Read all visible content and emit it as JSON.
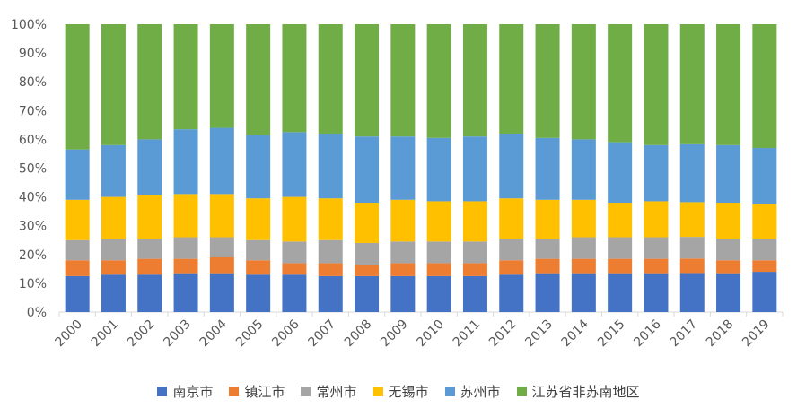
{
  "chart_data": {
    "type": "bar",
    "stacked": "percent",
    "categories": [
      "2000",
      "2001",
      "2002",
      "2003",
      "2004",
      "2005",
      "2006",
      "2007",
      "2008",
      "2009",
      "2010",
      "2011",
      "2012",
      "2013",
      "2014",
      "2015",
      "2016",
      "2017",
      "2018",
      "2019"
    ],
    "y_ticks": [
      "0%",
      "10%",
      "20%",
      "30%",
      "40%",
      "50%",
      "60%",
      "70%",
      "80%",
      "90%",
      "100%"
    ],
    "ylim": [
      0,
      100
    ],
    "grid": false,
    "legend_position": "bottom",
    "series": [
      {
        "name": "南京市",
        "color": "#4472C4",
        "values": [
          12.5,
          13,
          13,
          13.5,
          13.5,
          13,
          13,
          12.5,
          12.5,
          12.5,
          12.5,
          12.5,
          13,
          13.5,
          13.5,
          13.5,
          13.5,
          13.5,
          13.5,
          14
        ]
      },
      {
        "name": "镇江市",
        "color": "#ED7D31",
        "values": [
          5.5,
          5,
          5.5,
          5,
          5.5,
          5,
          4,
          4.5,
          4,
          4.5,
          4.5,
          4.5,
          5,
          5,
          5,
          5,
          5,
          5,
          4.5,
          4
        ]
      },
      {
        "name": "常州市",
        "color": "#A5A5A5",
        "values": [
          7,
          7.5,
          7,
          7.5,
          7,
          7,
          7.5,
          8,
          7.5,
          7.5,
          7.5,
          7.5,
          7.5,
          7,
          7.5,
          7.5,
          7.5,
          7.5,
          7.5,
          7.5
        ]
      },
      {
        "name": "无锡市",
        "color": "#FFC000",
        "values": [
          14,
          14.5,
          15,
          15,
          15,
          14.5,
          15.5,
          14.5,
          14,
          14.5,
          14,
          14,
          14,
          13.5,
          13,
          12,
          12.5,
          12,
          12.5,
          12
        ]
      },
      {
        "name": "苏州市",
        "color": "#5B9BD5",
        "values": [
          17.5,
          18,
          19.5,
          22.5,
          23,
          22,
          22.5,
          22.5,
          23,
          22,
          22,
          22.5,
          22.5,
          21.5,
          21,
          21,
          19.5,
          20,
          20,
          19.5
        ]
      },
      {
        "name": "江苏省非苏南地区",
        "color": "#70AD47",
        "values": [
          43.5,
          42,
          40,
          36.5,
          36,
          38.5,
          37.5,
          38,
          39,
          39,
          39.5,
          39,
          38,
          39.5,
          40,
          41,
          42,
          41.5,
          42,
          43
        ]
      }
    ]
  }
}
